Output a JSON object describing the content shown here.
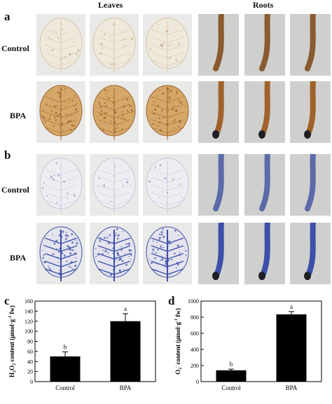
{
  "figure": {
    "column_headers": {
      "leaves": "Leaves",
      "roots": "Roots"
    },
    "panel_a": {
      "letter": "a",
      "rows": [
        "Control",
        "BPA"
      ],
      "stain": "DAB (brown)"
    },
    "panel_b": {
      "letter": "b",
      "rows": [
        "Control",
        "BPA"
      ],
      "stain": "NBT (blue)"
    },
    "panel_c": {
      "letter": "c"
    },
    "panel_d": {
      "letter": "d"
    }
  },
  "colors": {
    "tile_bg_leaf": "#e9e9e7",
    "tile_bg_root": "#cfd0ce",
    "dab_brown": "#a0622a",
    "dab_light": "#d8c7a8",
    "nbt_blue": "#3d4fa8",
    "nbt_light": "#c6c8dc",
    "bar": "#000000"
  },
  "chart_data": [
    {
      "type": "bar",
      "categories": [
        "Control",
        "BPA"
      ],
      "values": [
        50,
        120
      ],
      "errors": [
        9,
        15
      ],
      "letters": [
        "b",
        "a"
      ],
      "ylabel_main": "H",
      "ylabel_sub1": "2",
      "ylabel_mid": "O",
      "ylabel_sub2": "2",
      "ylabel_rest": " content (μmol·g",
      "ylabel_sup": "-1",
      "ylabel_end": " fw)",
      "ylim": [
        0,
        160
      ],
      "yticks": [
        0,
        20,
        40,
        60,
        80,
        100,
        120,
        140,
        160
      ]
    },
    {
      "type": "bar",
      "categories": [
        "Control",
        "BPA"
      ],
      "values": [
        140,
        835
      ],
      "errors": [
        15,
        35
      ],
      "letters": [
        "b",
        "a"
      ],
      "ylabel_main": "O",
      "ylabel_sub1": "2",
      "ylabel_sup0": "-",
      "ylabel_rest": " content (μmol·g",
      "ylabel_sup": "-1",
      "ylabel_end": " fw)",
      "ylim": [
        0,
        1000
      ],
      "yticks": [
        0,
        200,
        400,
        600,
        800,
        1000
      ]
    }
  ]
}
